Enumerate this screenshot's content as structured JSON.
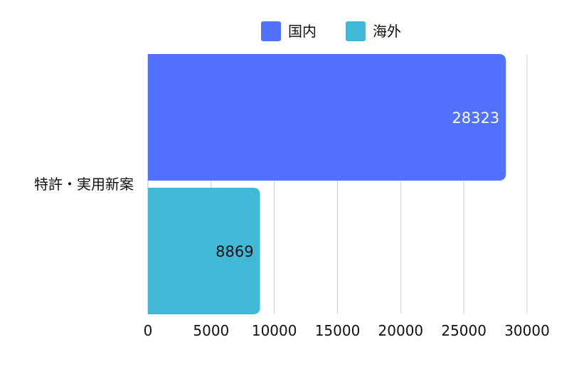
{
  "chart_data": {
    "type": "bar",
    "orientation": "horizontal",
    "categories": [
      "特許・実用新案"
    ],
    "series": [
      {
        "name": "国内",
        "values": [
          28323
        ],
        "color": "#5271ff",
        "label_color": "#ffffff"
      },
      {
        "name": "海外",
        "values": [
          8869
        ],
        "color": "#41b8d5",
        "label_color": "#111111"
      }
    ],
    "xlim": [
      0,
      30000
    ],
    "xticks": [
      0,
      5000,
      10000,
      15000,
      20000,
      25000,
      30000
    ],
    "xtick_labels": [
      "0",
      "5000",
      "10000",
      "15000",
      "20000",
      "25000",
      "30000"
    ],
    "data_labels": [
      "28323",
      "8869"
    ],
    "grid": true,
    "legend_position": "top-center"
  }
}
